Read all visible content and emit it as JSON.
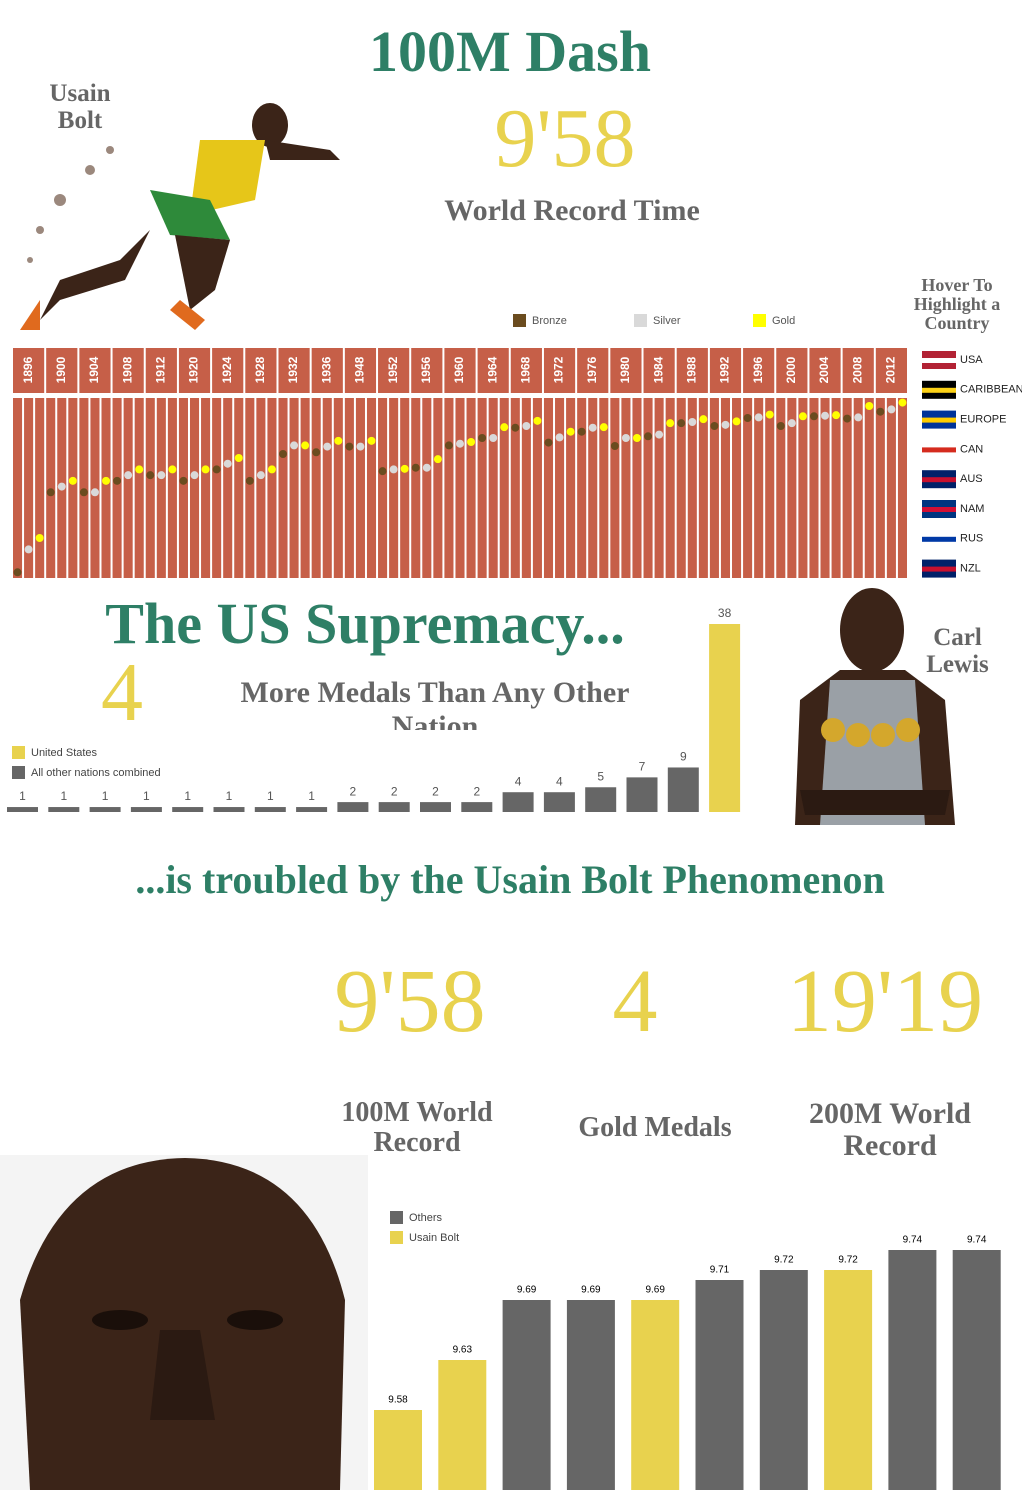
{
  "header": {
    "title": "100M Dash",
    "athlete": "Usain Bolt",
    "record": "9'58",
    "record_label": "World Record Time",
    "hint": "Hover To Highlight a Country"
  },
  "supremacy": {
    "title": "The US Supremacy...",
    "stat": "4",
    "stat_label": "More Medals Than Any Other Nation",
    "athlete": "Carl Lewis"
  },
  "phenomenon": {
    "title": "...is troubled by the Usain Bolt Phenomenon",
    "stats": [
      {
        "value": "9'58",
        "label": "100M World Record"
      },
      {
        "value": "4",
        "label": "Gold Medals"
      },
      {
        "value": "19'19",
        "label": "200M World Record"
      }
    ]
  },
  "chart_data": [
    {
      "type": "dot",
      "categories": [
        "1896",
        "1900",
        "1904",
        "1908",
        "1912",
        "1920",
        "1924",
        "1928",
        "1932",
        "1936",
        "1948",
        "1952",
        "1956",
        "1960",
        "1964",
        "1968",
        "1972",
        "1976",
        "1980",
        "1984",
        "1988",
        "1992",
        "1996",
        "2000",
        "2004",
        "2008",
        "2012"
      ],
      "series": [
        {
          "name": "Bronze",
          "color": "#6b4c1f",
          "values": [
            12.6,
            11.2,
            11.2,
            11.0,
            10.9,
            11.0,
            10.8,
            11.0,
            10.53,
            10.5,
            10.4,
            10.83,
            10.77,
            10.38,
            10.25,
            10.07,
            10.33,
            10.14,
            10.39,
            10.22,
            9.99,
            10.04,
            9.9,
            10.04,
            9.87,
            9.91,
            9.79
          ]
        },
        {
          "name": "Silver",
          "color": "#d9d9d9",
          "values": [
            12.2,
            11.1,
            11.2,
            10.9,
            10.9,
            10.9,
            10.7,
            10.9,
            10.38,
            10.4,
            10.4,
            10.8,
            10.77,
            10.35,
            10.25,
            10.04,
            10.24,
            10.07,
            10.25,
            10.19,
            9.97,
            10.02,
            9.89,
            9.99,
            9.86,
            9.89,
            9.75
          ]
        },
        {
          "name": "Gold",
          "color": "#ffff00",
          "values": [
            12.0,
            11.0,
            11.0,
            10.8,
            10.8,
            10.8,
            10.6,
            10.8,
            10.38,
            10.3,
            10.3,
            10.79,
            10.62,
            10.32,
            10.06,
            9.95,
            10.14,
            10.06,
            10.25,
            9.99,
            9.92,
            9.96,
            9.84,
            9.87,
            9.85,
            9.69,
            9.63
          ]
        }
      ],
      "ylim": [
        12.7,
        9.55
      ],
      "column_color": "#c65f48",
      "countries": [
        "USA",
        "CARIBBEAN",
        "EUROPE",
        "CAN",
        "AUS",
        "NAM",
        "RUS",
        "NZL"
      ]
    },
    {
      "type": "bar",
      "categories": [
        null,
        null,
        null,
        null,
        null,
        null,
        null,
        null,
        null,
        null,
        null,
        null,
        null,
        null,
        null,
        null,
        null,
        null
      ],
      "series": [
        {
          "name": "United States",
          "color": "#e8d24e",
          "values": [
            null,
            null,
            null,
            null,
            null,
            null,
            null,
            null,
            null,
            null,
            null,
            null,
            null,
            null,
            null,
            null,
            null,
            38
          ]
        },
        {
          "name": "All other nations combined",
          "color": "#666666",
          "values": [
            1,
            1,
            1,
            1,
            1,
            1,
            1,
            1,
            2,
            2,
            2,
            2,
            4,
            4,
            5,
            7,
            9,
            null
          ]
        }
      ],
      "ylim": [
        0,
        38
      ]
    },
    {
      "type": "bar",
      "categories": [
        null,
        null,
        null,
        null,
        null,
        null,
        null,
        null,
        null,
        null
      ],
      "series": [
        {
          "name": "Others",
          "color": "#666666",
          "values": [
            null,
            null,
            9.69,
            9.69,
            null,
            9.71,
            9.72,
            null,
            9.74,
            9.74
          ]
        },
        {
          "name": "Usain Bolt",
          "color": "#e8d24e",
          "values": [
            9.58,
            9.63,
            null,
            null,
            9.69,
            null,
            null,
            9.72,
            null,
            null
          ]
        }
      ],
      "ylim": [
        9.5,
        9.74
      ]
    }
  ]
}
